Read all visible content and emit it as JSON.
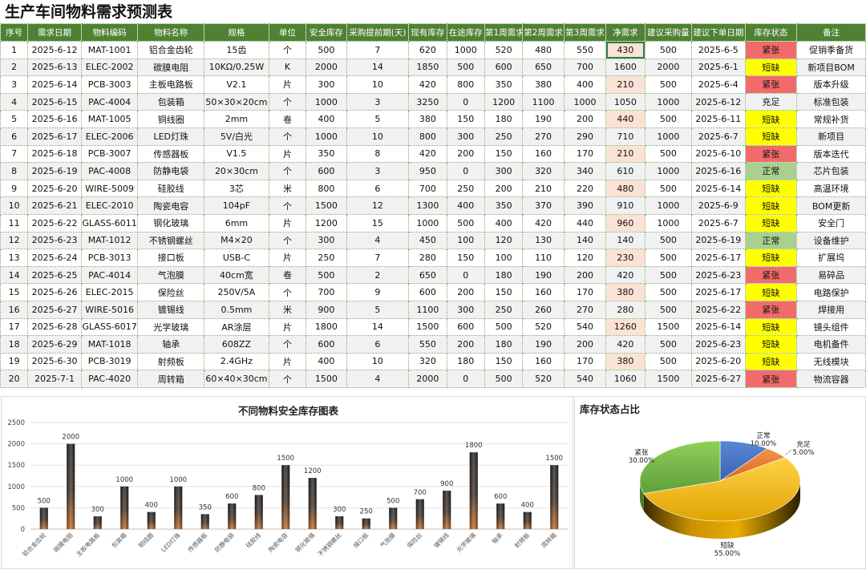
{
  "title": "生产车间物料需求预测表",
  "headers": [
    "序号",
    "需求日期",
    "物料编码",
    "物料名称",
    "规格",
    "单位",
    "安全库存",
    "采购提前期(天)",
    "现有库存",
    "在途库存",
    "第1周需求",
    "第2周需求",
    "第3周需求",
    "净需求",
    "建议采购量",
    "建议下单日期",
    "库存状态",
    "备注"
  ],
  "rows": [
    [
      "1",
      "2025-6-12",
      "MAT-1001",
      "铝合金齿轮",
      "15齿",
      "个",
      "500",
      "7",
      "620",
      "1000",
      "520",
      "480",
      "550",
      "430",
      "500",
      "2025-6-5",
      "紧张",
      "促销季备货"
    ],
    [
      "2",
      "2025-6-13",
      "ELEC-2002",
      "碳膜电阻",
      "10KΩ/0.25W",
      "K",
      "2000",
      "14",
      "1850",
      "500",
      "600",
      "650",
      "700",
      "1600",
      "2000",
      "2025-6-1",
      "短缺",
      "新项目BOM"
    ],
    [
      "3",
      "2025-6-14",
      "PCB-3003",
      "主板电路板",
      "V2.1",
      "片",
      "300",
      "10",
      "420",
      "800",
      "350",
      "380",
      "400",
      "210",
      "500",
      "2025-6-4",
      "紧张",
      "版本升级"
    ],
    [
      "4",
      "2025-6-15",
      "PAC-4004",
      "包装箱",
      "50×30×20cm",
      "个",
      "1000",
      "3",
      "3250",
      "0",
      "1200",
      "1100",
      "1000",
      "1050",
      "1000",
      "2025-6-12",
      "充足",
      "标准包装"
    ],
    [
      "5",
      "2025-6-16",
      "MAT-1005",
      "铜线圈",
      "2mm",
      "卷",
      "400",
      "5",
      "380",
      "150",
      "180",
      "190",
      "200",
      "440",
      "500",
      "2025-6-11",
      "短缺",
      "常规补货"
    ],
    [
      "6",
      "2025-6-17",
      "ELEC-2006",
      "LED灯珠",
      "5V/白光",
      "个",
      "1000",
      "10",
      "800",
      "300",
      "250",
      "270",
      "290",
      "710",
      "1000",
      "2025-6-7",
      "短缺",
      "新项目"
    ],
    [
      "7",
      "2025-6-18",
      "PCB-3007",
      "传感器板",
      "V1.5",
      "片",
      "350",
      "8",
      "420",
      "200",
      "150",
      "160",
      "170",
      "210",
      "500",
      "2025-6-10",
      "紧张",
      "版本迭代"
    ],
    [
      "8",
      "2025-6-19",
      "PAC-4008",
      "防静电袋",
      "20×30cm",
      "个",
      "600",
      "3",
      "950",
      "0",
      "300",
      "320",
      "340",
      "610",
      "1000",
      "2025-6-16",
      "正常",
      "芯片包装"
    ],
    [
      "9",
      "2025-6-20",
      "WIRE-5009",
      "硅胶线",
      "3芯",
      "米",
      "800",
      "6",
      "700",
      "250",
      "200",
      "210",
      "220",
      "480",
      "500",
      "2025-6-14",
      "短缺",
      "高温环境"
    ],
    [
      "10",
      "2025-6-21",
      "ELEC-2010",
      "陶瓷电容",
      "104pF",
      "个",
      "1500",
      "12",
      "1300",
      "400",
      "350",
      "370",
      "390",
      "910",
      "1000",
      "2025-6-9",
      "短缺",
      "BOM更新"
    ],
    [
      "11",
      "2025-6-22",
      "GLASS-6011",
      "钢化玻璃",
      "6mm",
      "片",
      "1200",
      "15",
      "1000",
      "500",
      "400",
      "420",
      "440",
      "960",
      "1000",
      "2025-6-7",
      "短缺",
      "安全门"
    ],
    [
      "12",
      "2025-6-23",
      "MAT-1012",
      "不锈钢螺丝",
      "M4×20",
      "个",
      "300",
      "4",
      "450",
      "100",
      "120",
      "130",
      "140",
      "140",
      "500",
      "2025-6-19",
      "正常",
      "设备维护"
    ],
    [
      "13",
      "2025-6-24",
      "PCB-3013",
      "接口板",
      "USB-C",
      "片",
      "250",
      "7",
      "280",
      "150",
      "100",
      "110",
      "120",
      "230",
      "500",
      "2025-6-17",
      "短缺",
      "扩展坞"
    ],
    [
      "14",
      "2025-6-25",
      "PAC-4014",
      "气泡膜",
      "40cm宽",
      "卷",
      "500",
      "2",
      "650",
      "0",
      "180",
      "190",
      "200",
      "420",
      "500",
      "2025-6-23",
      "紧张",
      "易碎品"
    ],
    [
      "15",
      "2025-6-26",
      "ELEC-2015",
      "保险丝",
      "250V/5A",
      "个",
      "700",
      "9",
      "600",
      "200",
      "150",
      "160",
      "170",
      "380",
      "500",
      "2025-6-17",
      "短缺",
      "电路保护"
    ],
    [
      "16",
      "2025-6-27",
      "WIRE-5016",
      "镀锡线",
      "0.5mm",
      "米",
      "900",
      "5",
      "1100",
      "300",
      "250",
      "260",
      "270",
      "280",
      "500",
      "2025-6-22",
      "紧张",
      "焊接用"
    ],
    [
      "17",
      "2025-6-28",
      "GLASS-6017",
      "光学玻璃",
      "AR涂层",
      "片",
      "1800",
      "14",
      "1500",
      "600",
      "500",
      "520",
      "540",
      "1260",
      "1500",
      "2025-6-14",
      "短缺",
      "镜头组件"
    ],
    [
      "18",
      "2025-6-29",
      "MAT-1018",
      "轴承",
      "608ZZ",
      "个",
      "600",
      "6",
      "550",
      "200",
      "180",
      "190",
      "200",
      "420",
      "500",
      "2025-6-23",
      "短缺",
      "电机备件"
    ],
    [
      "19",
      "2025-6-30",
      "PCB-3019",
      "射频板",
      "2.4GHz",
      "片",
      "400",
      "10",
      "320",
      "180",
      "150",
      "160",
      "170",
      "380",
      "500",
      "2025-6-20",
      "短缺",
      "无线模块"
    ],
    [
      "20",
      "2025-7-1",
      "PAC-4020",
      "周转箱",
      "60×40×30cm",
      "个",
      "1500",
      "4",
      "2000",
      "0",
      "500",
      "520",
      "540",
      "1060",
      "1500",
      "2025-6-27",
      "紧张",
      "物流容器"
    ]
  ],
  "highlight_net": [
    true,
    false,
    true,
    false,
    true,
    false,
    true,
    false,
    true,
    false,
    true,
    false,
    true,
    false,
    true,
    false,
    true,
    false,
    true,
    false
  ],
  "status_classes": {
    "紧张": "st-jz",
    "短缺": "st-dq",
    "正常": "st-zc",
    "充足": "st-cz"
  },
  "colors": {
    "header_bg": "#4f8133",
    "tight": "#f26b6b",
    "shortage": "#ffff00",
    "normal": "#a9d08e",
    "net_highlight": "#fbe2d5",
    "pie_normal": "#4472c4",
    "pie_ample": "#ed7d31",
    "pie_short": "#ffc000",
    "pie_tight": "#70ad47"
  },
  "bar_chart": {
    "title": "不同物料安全库存图表",
    "chart_data": {
      "type": "bar",
      "categories": [
        "铝合金齿轮",
        "碳膜电阻",
        "主板电路板",
        "包装箱",
        "铜线圈",
        "LED灯珠",
        "传感器板",
        "防静电袋",
        "硅胶线",
        "陶瓷电容",
        "钢化玻璃",
        "不锈钢螺丝",
        "接口板",
        "气泡膜",
        "保险丝",
        "镀锡线",
        "光学玻璃",
        "轴承",
        "射频板",
        "周转箱"
      ],
      "values": [
        500,
        2000,
        300,
        1000,
        400,
        1000,
        350,
        600,
        800,
        1500,
        1200,
        300,
        250,
        500,
        700,
        900,
        1800,
        600,
        400,
        1500
      ],
      "ylim": [
        0,
        2500
      ],
      "yticks": [
        0,
        500,
        1000,
        1500,
        2000,
        2500
      ],
      "grid": true,
      "legend": "none"
    }
  },
  "pie_chart": {
    "title": "库存状态占比",
    "chart_data": {
      "type": "pie",
      "labels": [
        "正常",
        "充足",
        "短缺",
        "紧张"
      ],
      "values": [
        10.0,
        5.0,
        55.0,
        30.0
      ],
      "value_labels": [
        "10.00%",
        "5.00%",
        "55.00%",
        "30.00%"
      ]
    }
  }
}
